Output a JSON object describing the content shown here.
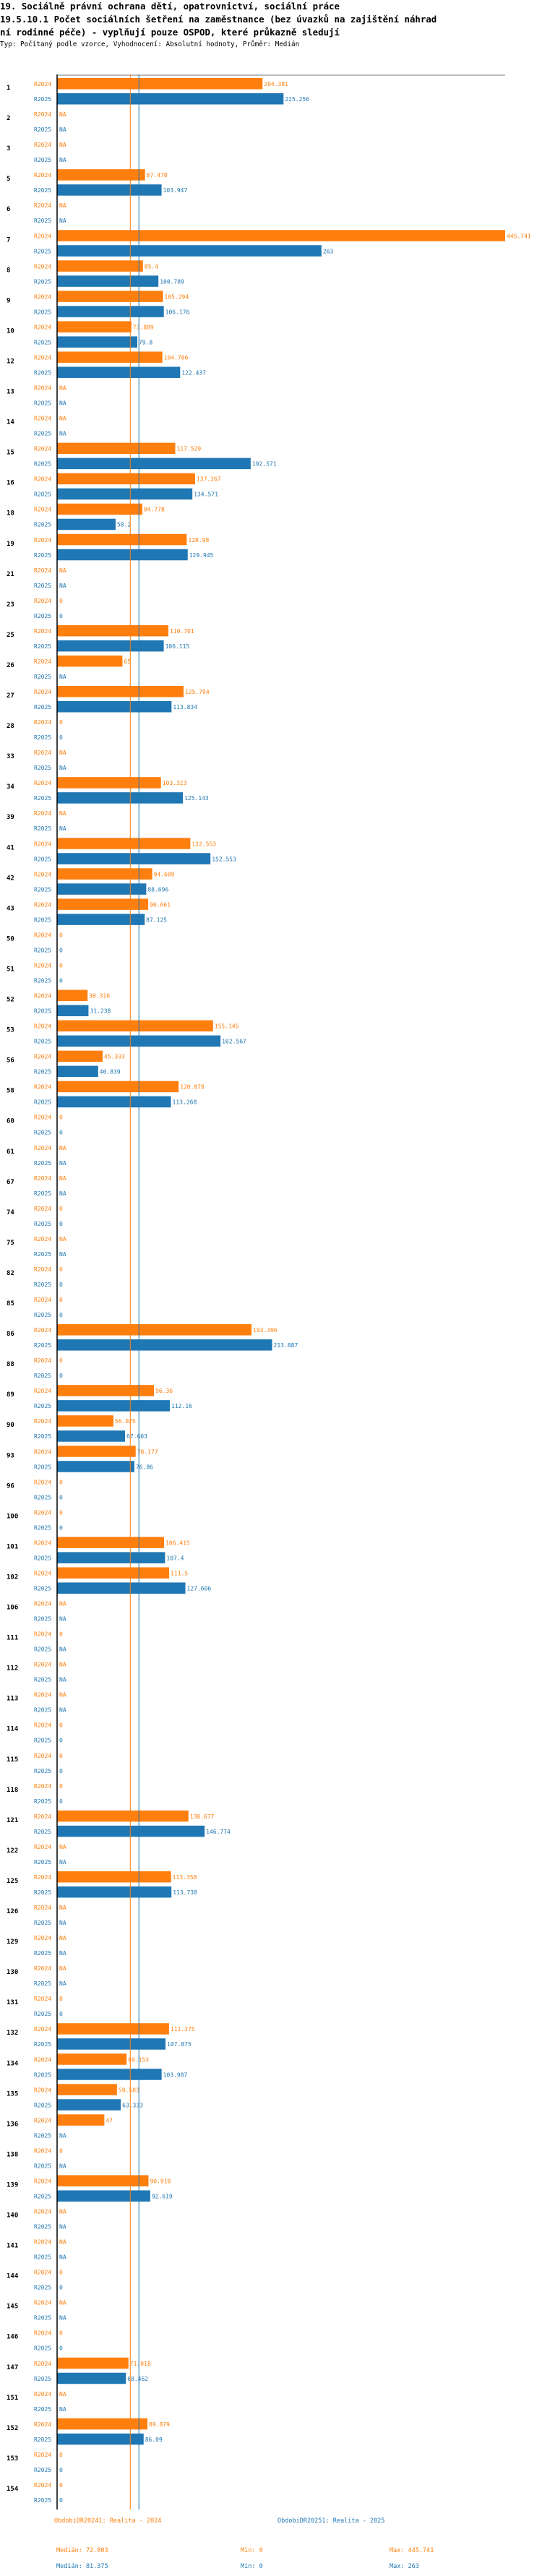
{
  "header": {
    "title": "19. Sociálně právní ochrana dětí, opatrovnictví, sociální práce",
    "subtitle_line1": "19.5.10.1 Počet sociálních šetření na zaměstnance (bez úvazků na zajištění náhrad",
    "subtitle_line2": "ní rodinné péče) - vyplňují pouze OSPOD, které průkazně sledují",
    "meta": "Typ: Počítaný podle vzorce, Vyhodnocení: Absolutní hodnoty, Průměr: Medián"
  },
  "colors": {
    "r2024": "#ff7f0e",
    "r2025": "#1f77b4",
    "median2024_line": "#ff7f0e",
    "median2025_line": "#1f77b4"
  },
  "chart_data": {
    "type": "bar",
    "orientation": "horizontal",
    "xlim": [
      0,
      445.741
    ],
    "series_names": [
      "R2024",
      "R2025"
    ],
    "categories": [
      "1",
      "2",
      "3",
      "5",
      "6",
      "7",
      "8",
      "9",
      "10",
      "12",
      "13",
      "14",
      "15",
      "16",
      "18",
      "19",
      "21",
      "23",
      "25",
      "26",
      "27",
      "28",
      "33",
      "34",
      "39",
      "41",
      "42",
      "43",
      "50",
      "51",
      "52",
      "53",
      "56",
      "58",
      "60",
      "61",
      "67",
      "74",
      "75",
      "82",
      "85",
      "86",
      "88",
      "89",
      "90",
      "93",
      "96",
      "100",
      "101",
      "102",
      "106",
      "111",
      "112",
      "113",
      "114",
      "115",
      "118",
      "121",
      "122",
      "125",
      "126",
      "129",
      "130",
      "131",
      "132",
      "134",
      "135",
      "136",
      "138",
      "139",
      "140",
      "141",
      "144",
      "145",
      "146",
      "147",
      "151",
      "152",
      "153",
      "154"
    ],
    "rows": [
      {
        "id": "1",
        "r2024": "204.381",
        "r2025": "225.256"
      },
      {
        "id": "2",
        "r2024": "NA",
        "r2025": "NA"
      },
      {
        "id": "3",
        "r2024": "NA",
        "r2025": "NA"
      },
      {
        "id": "5",
        "r2024": "87.478",
        "r2025": "103.947"
      },
      {
        "id": "6",
        "r2024": "NA",
        "r2025": "NA"
      },
      {
        "id": "7",
        "r2024": "445.741",
        "r2025": "263"
      },
      {
        "id": "8",
        "r2024": "85.4",
        "r2025": "100.789"
      },
      {
        "id": "9",
        "r2024": "105.294",
        "r2025": "106.176"
      },
      {
        "id": "10",
        "r2024": "73.889",
        "r2025": "79.8"
      },
      {
        "id": "12",
        "r2024": "104.706",
        "r2025": "122.437"
      },
      {
        "id": "13",
        "r2024": "NA",
        "r2025": "NA"
      },
      {
        "id": "14",
        "r2024": "NA",
        "r2025": "NA"
      },
      {
        "id": "15",
        "r2024": "117.529",
        "r2025": "192.571"
      },
      {
        "id": "16",
        "r2024": "137.267",
        "r2025": "134.571"
      },
      {
        "id": "18",
        "r2024": "84.778",
        "r2025": "58.2"
      },
      {
        "id": "19",
        "r2024": "128.98",
        "r2025": "129.945"
      },
      {
        "id": "21",
        "r2024": "NA",
        "r2025": "NA"
      },
      {
        "id": "23",
        "r2024": "0",
        "r2025": "0"
      },
      {
        "id": "25",
        "r2024": "110.701",
        "r2025": "106.115"
      },
      {
        "id": "26",
        "r2024": "65",
        "r2025": "NA"
      },
      {
        "id": "27",
        "r2024": "125.794",
        "r2025": "113.834"
      },
      {
        "id": "28",
        "r2024": "0",
        "r2025": "0"
      },
      {
        "id": "33",
        "r2024": "NA",
        "r2025": "NA"
      },
      {
        "id": "34",
        "r2024": "103.323",
        "r2025": "125.143"
      },
      {
        "id": "39",
        "r2024": "NA",
        "r2025": "NA"
      },
      {
        "id": "41",
        "r2024": "132.553",
        "r2025": "152.553"
      },
      {
        "id": "42",
        "r2024": "94.609",
        "r2025": "88.696"
      },
      {
        "id": "43",
        "r2024": "90.661",
        "r2025": "87.125"
      },
      {
        "id": "50",
        "r2024": "0",
        "r2025": "0"
      },
      {
        "id": "51",
        "r2024": "0",
        "r2025": "0"
      },
      {
        "id": "52",
        "r2024": "30.316",
        "r2025": "31.238"
      },
      {
        "id": "53",
        "r2024": "155.145",
        "r2025": "162.567"
      },
      {
        "id": "56",
        "r2024": "45.333",
        "r2025": "40.839"
      },
      {
        "id": "58",
        "r2024": "120.878",
        "r2025": "113.268"
      },
      {
        "id": "60",
        "r2024": "0",
        "r2025": "0"
      },
      {
        "id": "61",
        "r2024": "NA",
        "r2025": "NA"
      },
      {
        "id": "67",
        "r2024": "NA",
        "r2025": "NA"
      },
      {
        "id": "74",
        "r2024": "0",
        "r2025": "0"
      },
      {
        "id": "75",
        "r2024": "NA",
        "r2025": "NA"
      },
      {
        "id": "82",
        "r2024": "0",
        "r2025": "0"
      },
      {
        "id": "85",
        "r2024": "0",
        "r2025": "0"
      },
      {
        "id": "86",
        "r2024": "193.396",
        "r2025": "213.887"
      },
      {
        "id": "88",
        "r2024": "0",
        "r2025": "0"
      },
      {
        "id": "89",
        "r2024": "96.36",
        "r2025": "112.16"
      },
      {
        "id": "90",
        "r2024": "56.025",
        "r2025": "67.603"
      },
      {
        "id": "93",
        "r2024": "78.177",
        "r2025": "76.86"
      },
      {
        "id": "96",
        "r2024": "0",
        "r2025": "0"
      },
      {
        "id": "100",
        "r2024": "0",
        "r2025": "0"
      },
      {
        "id": "101",
        "r2024": "106.415",
        "r2025": "107.4"
      },
      {
        "id": "102",
        "r2024": "111.5",
        "r2025": "127.606"
      },
      {
        "id": "106",
        "r2024": "NA",
        "r2025": "NA"
      },
      {
        "id": "111",
        "r2024": "0",
        "r2025": "NA"
      },
      {
        "id": "112",
        "r2024": "NA",
        "r2025": "NA"
      },
      {
        "id": "113",
        "r2024": "NA",
        "r2025": "NA"
      },
      {
        "id": "114",
        "r2024": "0",
        "r2025": "0"
      },
      {
        "id": "115",
        "r2024": "0",
        "r2025": "0"
      },
      {
        "id": "118",
        "r2024": "0",
        "r2025": "0"
      },
      {
        "id": "121",
        "r2024": "130.677",
        "r2025": "146.774"
      },
      {
        "id": "122",
        "r2024": "NA",
        "r2025": "NA"
      },
      {
        "id": "125",
        "r2024": "113.358",
        "r2025": "113.738"
      },
      {
        "id": "126",
        "r2024": "NA",
        "r2025": "NA"
      },
      {
        "id": "129",
        "r2024": "NA",
        "r2025": "NA"
      },
      {
        "id": "130",
        "r2024": "NA",
        "r2025": "NA"
      },
      {
        "id": "131",
        "r2024": "0",
        "r2025": "0"
      },
      {
        "id": "132",
        "r2024": "111.375",
        "r2025": "107.875"
      },
      {
        "id": "134",
        "r2024": "69.153",
        "r2025": "103.987"
      },
      {
        "id": "135",
        "r2024": "59.583",
        "r2025": "63.333"
      },
      {
        "id": "136",
        "r2024": "47",
        "r2025": "NA"
      },
      {
        "id": "138",
        "r2024": "0",
        "r2025": "NA"
      },
      {
        "id": "139",
        "r2024": "90.918",
        "r2025": "92.619"
      },
      {
        "id": "140",
        "r2024": "NA",
        "r2025": "NA"
      },
      {
        "id": "141",
        "r2024": "NA",
        "r2025": "NA"
      },
      {
        "id": "144",
        "r2024": "0",
        "r2025": "0"
      },
      {
        "id": "145",
        "r2024": "NA",
        "r2025": "NA"
      },
      {
        "id": "146",
        "r2024": "0",
        "r2025": "0"
      },
      {
        "id": "147",
        "r2024": "71.018",
        "r2025": "68.462"
      },
      {
        "id": "151",
        "r2024": "NA",
        "r2025": "NA"
      },
      {
        "id": "152",
        "r2024": "89.879",
        "r2025": "86.09"
      },
      {
        "id": "153",
        "r2024": "0",
        "r2025": "0"
      },
      {
        "id": "154",
        "r2024": "0",
        "r2025": "0"
      }
    ],
    "medians": {
      "r2024": 72.803,
      "r2025": 81.375
    }
  },
  "footer": {
    "legend_2024": "ObdobiDR20241: Realita - 2024",
    "legend_2025": "ObdobiDR20251: Realita - 2025",
    "median_2024": "Medián: 72.803",
    "min_2024": "Min: 0",
    "max_2024": "Max: 445.741",
    "median_2025": "Medián: 81.375",
    "min_2025": "Min: 0",
    "max_2025": "Max: 263"
  }
}
